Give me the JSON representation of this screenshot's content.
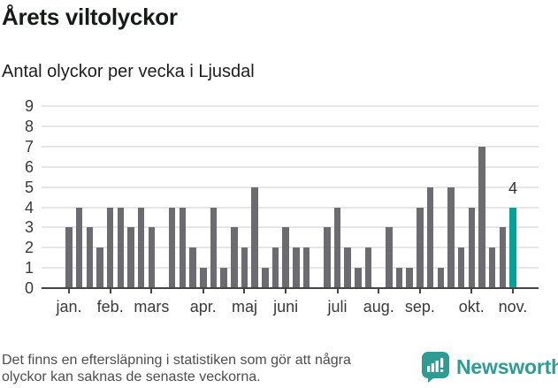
{
  "header": {
    "title": "Årets viltolyckor",
    "subtitle": "Antal olyckor per vecka i Ljusdal"
  },
  "chart_data": {
    "type": "bar",
    "title": "Årets viltolyckor",
    "subtitle": "Antal olyckor per vecka i Ljusdal",
    "ylabel": "",
    "xlabel": "",
    "ylim": [
      0,
      9
    ],
    "grid": true,
    "y_ticks": [
      0,
      1,
      2,
      3,
      4,
      5,
      6,
      7,
      8,
      9
    ],
    "values": [
      3,
      4,
      3,
      2,
      4,
      4,
      3,
      4,
      3,
      0,
      4,
      4,
      2,
      1,
      4,
      1,
      3,
      2,
      5,
      1,
      2,
      3,
      2,
      2,
      0,
      3,
      4,
      2,
      1,
      2,
      0,
      3,
      1,
      1,
      4,
      5,
      1,
      5,
      2,
      4,
      7,
      2,
      3,
      4
    ],
    "x_month_ticks": [
      {
        "index": 0,
        "label": "jan."
      },
      {
        "index": 4,
        "label": "feb."
      },
      {
        "index": 8,
        "label": "mars"
      },
      {
        "index": 13,
        "label": "apr."
      },
      {
        "index": 17,
        "label": "maj"
      },
      {
        "index": 21,
        "label": "juni"
      },
      {
        "index": 26,
        "label": "juli"
      },
      {
        "index": 30,
        "label": "aug."
      },
      {
        "index": 34,
        "label": "sep."
      },
      {
        "index": 39,
        "label": "okt."
      },
      {
        "index": 43,
        "label": "nov."
      }
    ],
    "highlight_index": 43,
    "highlight_label": "4",
    "colors": {
      "bar": "#6b6b70",
      "highlight": "#00a396"
    }
  },
  "footer": {
    "note": "Det finns en eftersläpning i statistiken som gör att några\nolyckor kan saknas de senaste veckorna.",
    "brand": "Newsworthy",
    "brand_color": "#2f9c94"
  }
}
